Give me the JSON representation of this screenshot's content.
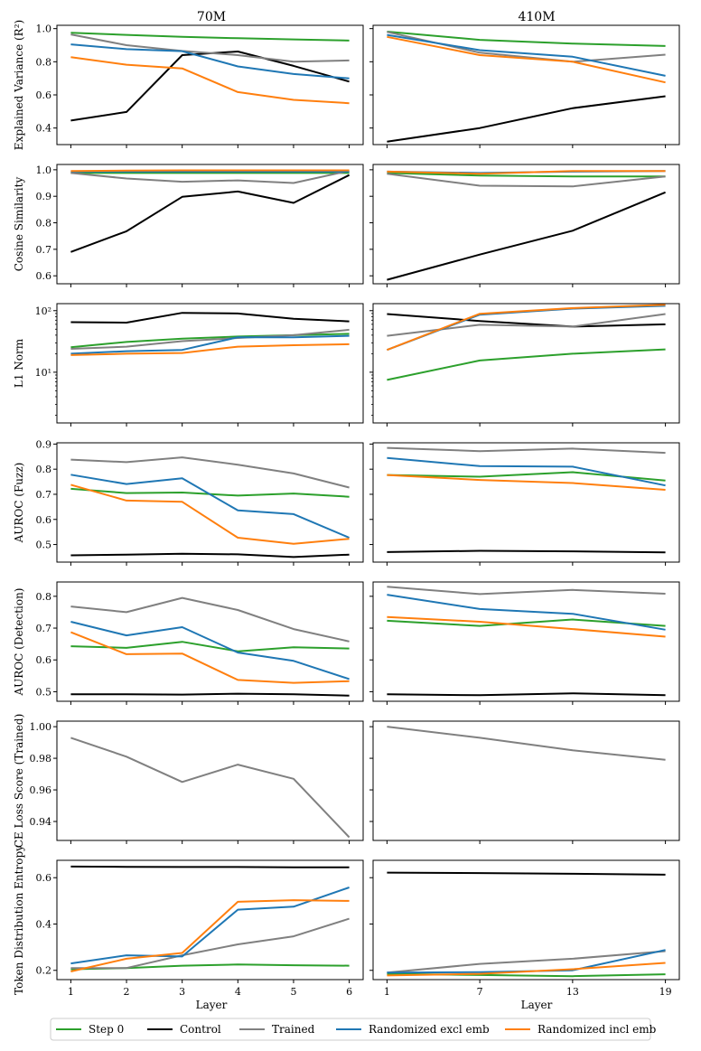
{
  "figure": {
    "column_titles": [
      "70M",
      "410M"
    ],
    "xlabel": "Layer"
  },
  "legend": [
    {
      "name": "Step 0",
      "color": "#2ca02c"
    },
    {
      "name": "Control",
      "color": "#000000"
    },
    {
      "name": "Trained",
      "color": "#808080"
    },
    {
      "name": "Randomized excl emb",
      "color": "#1f77b4"
    },
    {
      "name": "Randomized incl emb",
      "color": "#ff7f0e"
    }
  ],
  "chart_data": [
    {
      "type": "line",
      "metric": "Explained Variance (R²)",
      "ylabel": "Explained Variance (R²)",
      "model": "70M",
      "x": [
        1,
        2,
        3,
        4,
        5,
        6
      ],
      "xticks": [
        1,
        2,
        3,
        4,
        5,
        6
      ],
      "xlim": [
        0.75,
        6.25
      ],
      "ylim": [
        0.3,
        1.02
      ],
      "yscale": "linear",
      "yticks": [
        0.4,
        0.6,
        0.8,
        1.0
      ],
      "ytick_labels": [
        "0.4",
        "0.6",
        "0.8",
        "1.0"
      ],
      "series": [
        {
          "name": "Step 0",
          "values": [
            0.975,
            0.962,
            0.95,
            0.942,
            0.935,
            0.928
          ]
        },
        {
          "name": "Control",
          "values": [
            0.445,
            0.497,
            0.84,
            0.862,
            0.775,
            0.68
          ]
        },
        {
          "name": "Trained",
          "values": [
            0.965,
            0.9,
            0.865,
            0.84,
            0.8,
            0.808
          ]
        },
        {
          "name": "Randomized excl emb",
          "values": [
            0.905,
            0.876,
            0.864,
            0.772,
            0.726,
            0.7
          ]
        },
        {
          "name": "Randomized incl emb",
          "values": [
            0.828,
            0.782,
            0.76,
            0.617,
            0.57,
            0.55
          ]
        }
      ]
    },
    {
      "type": "line",
      "metric": "Explained Variance (R²)",
      "ylabel": "",
      "model": "410M",
      "x": [
        1,
        7,
        13,
        19
      ],
      "xticks": [
        1,
        7,
        13,
        19
      ],
      "xlim": [
        0.1,
        19.9
      ],
      "ylim": [
        0.3,
        1.02
      ],
      "yscale": "linear",
      "yticks": [
        0.4,
        0.6,
        0.8,
        1.0
      ],
      "ytick_labels": [],
      "series": [
        {
          "name": "Step 0",
          "values": [
            0.982,
            0.932,
            0.91,
            0.895
          ]
        },
        {
          "name": "Control",
          "values": [
            0.318,
            0.4,
            0.52,
            0.592
          ]
        },
        {
          "name": "Trained",
          "values": [
            0.98,
            0.855,
            0.8,
            0.843
          ]
        },
        {
          "name": "Randomized excl emb",
          "values": [
            0.962,
            0.87,
            0.83,
            0.715
          ]
        },
        {
          "name": "Randomized incl emb",
          "values": [
            0.95,
            0.84,
            0.8,
            0.675
          ]
        }
      ]
    },
    {
      "type": "line",
      "metric": "Cosine Similarity",
      "ylabel": "Cosine Similarity",
      "model": "70M",
      "x": [
        1,
        2,
        3,
        4,
        5,
        6
      ],
      "xticks": [
        1,
        2,
        3,
        4,
        5,
        6
      ],
      "xlim": [
        0.75,
        6.25
      ],
      "ylim": [
        0.57,
        1.02
      ],
      "yscale": "linear",
      "yticks": [
        0.6,
        0.7,
        0.8,
        0.9,
        1.0
      ],
      "ytick_labels": [
        "0.6",
        "0.7",
        "0.8",
        "0.9",
        "1.0"
      ],
      "series": [
        {
          "name": "Step 0",
          "values": [
            0.988,
            0.988,
            0.988,
            0.988,
            0.988,
            0.988
          ]
        },
        {
          "name": "Control",
          "values": [
            0.69,
            0.768,
            0.898,
            0.918,
            0.875,
            0.98
          ]
        },
        {
          "name": "Trained",
          "values": [
            0.988,
            0.967,
            0.955,
            0.96,
            0.95,
            0.996
          ]
        },
        {
          "name": "Randomized excl emb",
          "values": [
            0.993,
            0.993,
            0.993,
            0.993,
            0.993,
            0.993
          ]
        },
        {
          "name": "Randomized incl emb",
          "values": [
            0.995,
            0.997,
            0.998,
            0.998,
            0.998,
            0.998
          ]
        }
      ]
    },
    {
      "type": "line",
      "metric": "Cosine Similarity",
      "ylabel": "",
      "model": "410M",
      "x": [
        1,
        7,
        13,
        19
      ],
      "xticks": [
        1,
        7,
        13,
        19
      ],
      "xlim": [
        0.1,
        19.9
      ],
      "ylim": [
        0.57,
        1.02
      ],
      "yscale": "linear",
      "yticks": [
        0.6,
        0.7,
        0.8,
        0.9,
        1.0
      ],
      "ytick_labels": [],
      "series": [
        {
          "name": "Step 0",
          "values": [
            0.988,
            0.978,
            0.975,
            0.975
          ]
        },
        {
          "name": "Control",
          "values": [
            0.585,
            0.68,
            0.77,
            0.915
          ]
        },
        {
          "name": "Trained",
          "values": [
            0.985,
            0.94,
            0.937,
            0.975
          ]
        },
        {
          "name": "Randomized excl emb",
          "values": [
            0.993,
            0.988,
            0.993,
            0.995
          ]
        },
        {
          "name": "Randomized incl emb",
          "values": [
            0.993,
            0.985,
            0.995,
            0.995
          ]
        }
      ]
    },
    {
      "type": "line",
      "metric": "L1 Norm",
      "ylabel": "L1 Norm",
      "model": "70M",
      "x": [
        1,
        2,
        3,
        4,
        5,
        6
      ],
      "xticks": [
        1,
        2,
        3,
        4,
        5,
        6
      ],
      "xlim": [
        0.75,
        6.25
      ],
      "ylim": [
        1.5,
        130
      ],
      "yscale": "log",
      "yticks": [
        10,
        100
      ],
      "ytick_labels": [
        "10¹",
        "10²"
      ],
      "series": [
        {
          "name": "Step 0",
          "values": [
            25.5,
            31,
            35,
            38,
            40,
            42
          ]
        },
        {
          "name": "Control",
          "values": [
            65,
            64,
            92,
            90,
            74,
            67
          ]
        },
        {
          "name": "Trained",
          "values": [
            24,
            26,
            32,
            36,
            40,
            49
          ]
        },
        {
          "name": "Randomized excl emb",
          "values": [
            20,
            22,
            23,
            37,
            37,
            39
          ]
        },
        {
          "name": "Randomized incl emb",
          "values": [
            19,
            20,
            20.5,
            26,
            27.5,
            28.5
          ]
        }
      ]
    },
    {
      "type": "line",
      "metric": "L1 Norm",
      "ylabel": "",
      "model": "410M",
      "x": [
        1,
        7,
        13,
        19
      ],
      "xticks": [
        1,
        7,
        13,
        19
      ],
      "xlim": [
        0.1,
        19.9
      ],
      "ylim": [
        1.5,
        130
      ],
      "yscale": "log",
      "yticks": [
        10,
        100
      ],
      "ytick_labels": [],
      "series": [
        {
          "name": "Step 0",
          "values": [
            7.5,
            15.5,
            20,
            23.5
          ]
        },
        {
          "name": "Control",
          "values": [
            88,
            68,
            55,
            60
          ]
        },
        {
          "name": "Trained",
          "values": [
            39,
            59,
            55,
            88
          ]
        },
        {
          "name": "Randomized excl emb",
          "values": [
            23,
            86,
            108,
            120
          ]
        },
        {
          "name": "Randomized incl emb",
          "values": [
            23,
            89,
            110,
            125
          ]
        }
      ]
    },
    {
      "type": "line",
      "metric": "AUROC (Fuzz)",
      "ylabel": "AUROC (Fuzz)",
      "model": "70M",
      "x": [
        1,
        2,
        3,
        4,
        5,
        6
      ],
      "xticks": [
        1,
        2,
        3,
        4,
        5,
        6
      ],
      "xlim": [
        0.75,
        6.25
      ],
      "ylim": [
        0.43,
        0.905
      ],
      "yscale": "linear",
      "yticks": [
        0.5,
        0.6,
        0.7,
        0.8,
        0.9
      ],
      "ytick_labels": [
        "0.5",
        "0.6",
        "0.7",
        "0.8",
        "0.9"
      ],
      "series": [
        {
          "name": "Step 0",
          "values": [
            0.722,
            0.705,
            0.707,
            0.695,
            0.703,
            0.69
          ]
        },
        {
          "name": "Control",
          "values": [
            0.457,
            0.46,
            0.463,
            0.461,
            0.45,
            0.46
          ]
        },
        {
          "name": "Trained",
          "values": [
            0.838,
            0.828,
            0.847,
            0.818,
            0.783,
            0.727
          ]
        },
        {
          "name": "Randomized excl emb",
          "values": [
            0.778,
            0.741,
            0.764,
            0.636,
            0.621,
            0.527
          ]
        },
        {
          "name": "Randomized incl emb",
          "values": [
            0.738,
            0.675,
            0.67,
            0.527,
            0.503,
            0.523
          ]
        }
      ]
    },
    {
      "type": "line",
      "metric": "AUROC (Fuzz)",
      "ylabel": "",
      "model": "410M",
      "x": [
        1,
        7,
        13,
        19
      ],
      "xticks": [
        1,
        7,
        13,
        19
      ],
      "xlim": [
        0.1,
        19.9
      ],
      "ylim": [
        0.43,
        0.905
      ],
      "yscale": "linear",
      "yticks": [
        0.5,
        0.6,
        0.7,
        0.8,
        0.9
      ],
      "ytick_labels": [],
      "series": [
        {
          "name": "Step 0",
          "values": [
            0.777,
            0.77,
            0.788,
            0.755
          ]
        },
        {
          "name": "Control",
          "values": [
            0.47,
            0.475,
            0.473,
            0.469
          ]
        },
        {
          "name": "Trained",
          "values": [
            0.885,
            0.872,
            0.882,
            0.865
          ]
        },
        {
          "name": "Randomized excl emb",
          "values": [
            0.845,
            0.812,
            0.81,
            0.735
          ]
        },
        {
          "name": "Randomized incl emb",
          "values": [
            0.777,
            0.757,
            0.745,
            0.718
          ]
        }
      ]
    },
    {
      "type": "line",
      "metric": "AUROC (Detection)",
      "ylabel": "AUROC (Detection)",
      "model": "70M",
      "x": [
        1,
        2,
        3,
        4,
        5,
        6
      ],
      "xticks": [
        1,
        2,
        3,
        4,
        5,
        6
      ],
      "xlim": [
        0.75,
        6.25
      ],
      "ylim": [
        0.47,
        0.845
      ],
      "yscale": "linear",
      "yticks": [
        0.5,
        0.6,
        0.7,
        0.8
      ],
      "ytick_labels": [
        "0.5",
        "0.6",
        "0.7",
        "0.8"
      ],
      "series": [
        {
          "name": "Step 0",
          "values": [
            0.643,
            0.638,
            0.657,
            0.627,
            0.64,
            0.636
          ]
        },
        {
          "name": "Control",
          "values": [
            0.492,
            0.492,
            0.491,
            0.494,
            0.492,
            0.488
          ]
        },
        {
          "name": "Trained",
          "values": [
            0.768,
            0.75,
            0.795,
            0.757,
            0.697,
            0.658
          ]
        },
        {
          "name": "Randomized excl emb",
          "values": [
            0.72,
            0.677,
            0.703,
            0.623,
            0.597,
            0.54
          ]
        },
        {
          "name": "Randomized incl emb",
          "values": [
            0.687,
            0.618,
            0.62,
            0.537,
            0.528,
            0.533
          ]
        }
      ]
    },
    {
      "type": "line",
      "metric": "AUROC (Detection)",
      "ylabel": "",
      "model": "410M",
      "x": [
        1,
        7,
        13,
        19
      ],
      "xticks": [
        1,
        7,
        13,
        19
      ],
      "xlim": [
        0.1,
        19.9
      ],
      "ylim": [
        0.47,
        0.845
      ],
      "yscale": "linear",
      "yticks": [
        0.5,
        0.6,
        0.7,
        0.8
      ],
      "ytick_labels": [],
      "series": [
        {
          "name": "Step 0",
          "values": [
            0.723,
            0.707,
            0.727,
            0.707
          ]
        },
        {
          "name": "Control",
          "values": [
            0.492,
            0.489,
            0.495,
            0.489
          ]
        },
        {
          "name": "Trained",
          "values": [
            0.83,
            0.807,
            0.82,
            0.808
          ]
        },
        {
          "name": "Randomized excl emb",
          "values": [
            0.805,
            0.76,
            0.745,
            0.695
          ]
        },
        {
          "name": "Randomized incl emb",
          "values": [
            0.735,
            0.72,
            0.697,
            0.673
          ]
        }
      ]
    },
    {
      "type": "line",
      "metric": "CE Loss Score (Trained)",
      "ylabel": "CE Loss Score (Trained)",
      "model": "70M",
      "x": [
        1,
        2,
        3,
        4,
        5,
        6
      ],
      "xticks": [
        1,
        2,
        3,
        4,
        5,
        6
      ],
      "xlim": [
        0.75,
        6.25
      ],
      "ylim": [
        0.928,
        1.0035
      ],
      "yscale": "linear",
      "yticks": [
        0.94,
        0.96,
        0.98,
        1.0
      ],
      "ytick_labels": [
        "0.94",
        "0.96",
        "0.98",
        "1.00"
      ],
      "series": [
        {
          "name": "Trained",
          "values": [
            0.993,
            0.981,
            0.965,
            0.976,
            0.967,
            0.93
          ]
        }
      ]
    },
    {
      "type": "line",
      "metric": "CE Loss Score (Trained)",
      "ylabel": "",
      "model": "410M",
      "x": [
        1,
        7,
        13,
        19
      ],
      "xticks": [
        1,
        7,
        13,
        19
      ],
      "xlim": [
        0.1,
        19.9
      ],
      "ylim": [
        0.928,
        1.0035
      ],
      "yscale": "linear",
      "yticks": [
        0.94,
        0.96,
        0.98,
        1.0
      ],
      "ytick_labels": [],
      "series": [
        {
          "name": "Trained",
          "values": [
            1.0,
            0.993,
            0.985,
            0.979
          ]
        }
      ]
    },
    {
      "type": "line",
      "metric": "Token Distribution Entropy",
      "ylabel": "Token Distribution Entropy",
      "model": "70M",
      "x": [
        1,
        2,
        3,
        4,
        5,
        6
      ],
      "xticks": [
        1,
        2,
        3,
        4,
        5,
        6
      ],
      "xlim": [
        0.75,
        6.25
      ],
      "ylim": [
        0.16,
        0.675
      ],
      "yscale": "linear",
      "yticks": [
        0.2,
        0.4,
        0.6
      ],
      "ytick_labels": [
        "0.2",
        "0.4",
        "0.6"
      ],
      "series": [
        {
          "name": "Step 0",
          "values": [
            0.205,
            0.21,
            0.22,
            0.225,
            0.222,
            0.22
          ]
        },
        {
          "name": "Control",
          "values": [
            0.648,
            0.647,
            0.646,
            0.646,
            0.645,
            0.645
          ]
        },
        {
          "name": "Trained",
          "values": [
            0.21,
            0.21,
            0.265,
            0.312,
            0.347,
            0.423
          ]
        },
        {
          "name": "Randomized excl emb",
          "values": [
            0.23,
            0.265,
            0.26,
            0.462,
            0.475,
            0.558
          ]
        },
        {
          "name": "Randomized incl emb",
          "values": [
            0.195,
            0.25,
            0.275,
            0.496,
            0.503,
            0.5
          ]
        }
      ]
    },
    {
      "type": "line",
      "metric": "Token Distribution Entropy",
      "ylabel": "",
      "model": "410M",
      "x": [
        1,
        7,
        13,
        19
      ],
      "xticks": [
        1,
        7,
        13,
        19
      ],
      "xlim": [
        0.1,
        19.9
      ],
      "ylim": [
        0.16,
        0.675
      ],
      "yscale": "linear",
      "yticks": [
        0.2,
        0.4,
        0.6
      ],
      "ytick_labels": [],
      "series": [
        {
          "name": "Step 0",
          "values": [
            0.185,
            0.18,
            0.175,
            0.183
          ]
        },
        {
          "name": "Control",
          "values": [
            0.622,
            0.62,
            0.617,
            0.613
          ]
        },
        {
          "name": "Trained",
          "values": [
            0.19,
            0.228,
            0.25,
            0.283
          ]
        },
        {
          "name": "Randomized excl emb",
          "values": [
            0.19,
            0.192,
            0.2,
            0.288
          ]
        },
        {
          "name": "Randomized incl emb",
          "values": [
            0.178,
            0.185,
            0.205,
            0.232
          ]
        }
      ]
    }
  ]
}
